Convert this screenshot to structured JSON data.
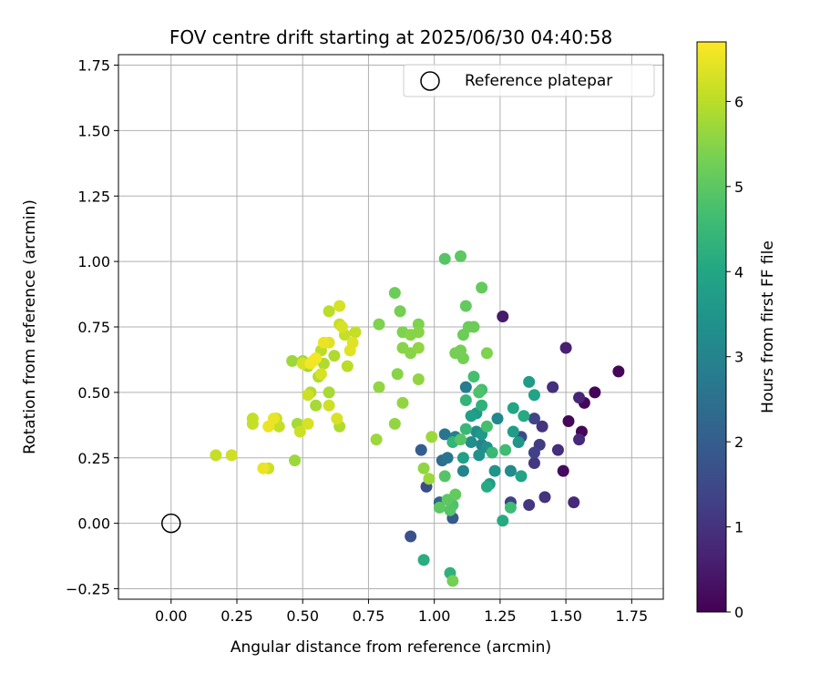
{
  "chart_data": {
    "type": "scatter",
    "title": "FOV centre drift starting at 2025/06/30 04:40:58",
    "xlabel": "Angular distance from reference (arcmin)",
    "ylabel": "Rotation from reference (arcmin)",
    "xlim": [
      -0.2,
      1.87
    ],
    "ylim": [
      -0.29,
      1.79
    ],
    "grid": true,
    "x_ticks": [
      "0.00",
      "0.25",
      "0.50",
      "0.75",
      "1.00",
      "1.25",
      "1.50",
      "1.75"
    ],
    "y_ticks": [
      "−0.25",
      "0.00",
      "0.25",
      "0.50",
      "0.75",
      "1.00",
      "1.25",
      "1.50",
      "1.75"
    ],
    "legend": {
      "position": "top-right",
      "label": "Reference platepar"
    },
    "reference_point": {
      "x": 0.0,
      "y": 0.0
    },
    "colorbar": {
      "label": "Hours from first FF file",
      "range": [
        0,
        6.7
      ],
      "ticks": [
        "0",
        "1",
        "2",
        "3",
        "4",
        "5",
        "6"
      ],
      "colormap": "viridis"
    },
    "points": [
      {
        "x": 1.7,
        "y": 0.58,
        "h": 0.1
      },
      {
        "x": 1.61,
        "y": 0.5,
        "h": 0.1
      },
      {
        "x": 1.57,
        "y": 0.46,
        "h": 0.1
      },
      {
        "x": 1.51,
        "y": 0.39,
        "h": 0.1
      },
      {
        "x": 1.56,
        "y": 0.35,
        "h": 0.1
      },
      {
        "x": 1.49,
        "y": 0.2,
        "h": 0.2
      },
      {
        "x": 1.26,
        "y": 0.79,
        "h": 0.5
      },
      {
        "x": 1.5,
        "y": 0.67,
        "h": 0.6
      },
      {
        "x": 1.55,
        "y": 0.48,
        "h": 0.7
      },
      {
        "x": 1.55,
        "y": 0.32,
        "h": 0.8
      },
      {
        "x": 1.53,
        "y": 0.08,
        "h": 0.8
      },
      {
        "x": 1.45,
        "y": 0.52,
        "h": 0.9
      },
      {
        "x": 1.47,
        "y": 0.28,
        "h": 0.9
      },
      {
        "x": 1.42,
        "y": 0.1,
        "h": 1.0
      },
      {
        "x": 1.41,
        "y": 0.37,
        "h": 1.0
      },
      {
        "x": 1.38,
        "y": 0.23,
        "h": 1.1
      },
      {
        "x": 1.36,
        "y": 0.07,
        "h": 1.1
      },
      {
        "x": 1.4,
        "y": 0.3,
        "h": 1.2
      },
      {
        "x": 1.38,
        "y": 0.27,
        "h": 1.3
      },
      {
        "x": 1.29,
        "y": 0.08,
        "h": 1.3
      },
      {
        "x": 1.38,
        "y": 0.4,
        "h": 1.4
      },
      {
        "x": 1.33,
        "y": 0.33,
        "h": 1.5
      },
      {
        "x": 0.97,
        "y": 0.14,
        "h": 1.6
      },
      {
        "x": 0.91,
        "y": -0.05,
        "h": 1.7
      },
      {
        "x": 1.07,
        "y": 0.02,
        "h": 1.9
      },
      {
        "x": 0.95,
        "y": 0.28,
        "h": 2.0
      },
      {
        "x": 1.02,
        "y": 0.08,
        "h": 2.2
      },
      {
        "x": 1.03,
        "y": 0.24,
        "h": 2.4
      },
      {
        "x": 1.05,
        "y": 0.25,
        "h": 2.6
      },
      {
        "x": 1.04,
        "y": 0.34,
        "h": 2.6
      },
      {
        "x": 1.12,
        "y": 0.52,
        "h": 2.8
      },
      {
        "x": 1.08,
        "y": 0.33,
        "h": 2.9
      },
      {
        "x": 1.11,
        "y": 0.2,
        "h": 3.0
      },
      {
        "x": 1.18,
        "y": 0.3,
        "h": 3.0
      },
      {
        "x": 1.24,
        "y": 0.4,
        "h": 3.1
      },
      {
        "x": 1.29,
        "y": 0.2,
        "h": 3.2
      },
      {
        "x": 1.14,
        "y": 0.31,
        "h": 3.3
      },
      {
        "x": 1.16,
        "y": 0.35,
        "h": 3.3
      },
      {
        "x": 1.2,
        "y": 0.29,
        "h": 3.4
      },
      {
        "x": 1.17,
        "y": 0.26,
        "h": 3.4
      },
      {
        "x": 1.32,
        "y": 0.31,
        "h": 3.5
      },
      {
        "x": 1.23,
        "y": 0.2,
        "h": 3.5
      },
      {
        "x": 1.16,
        "y": 0.42,
        "h": 3.6
      },
      {
        "x": 1.18,
        "y": 0.34,
        "h": 3.6
      },
      {
        "x": 1.36,
        "y": 0.54,
        "h": 3.7
      },
      {
        "x": 1.3,
        "y": 0.35,
        "h": 3.7
      },
      {
        "x": 1.21,
        "y": 0.15,
        "h": 3.7
      },
      {
        "x": 1.11,
        "y": 0.25,
        "h": 3.8
      },
      {
        "x": 1.14,
        "y": 0.41,
        "h": 3.8
      },
      {
        "x": 1.33,
        "y": 0.18,
        "h": 3.9
      },
      {
        "x": 1.38,
        "y": 0.49,
        "h": 3.9
      },
      {
        "x": 1.3,
        "y": 0.44,
        "h": 4.0
      },
      {
        "x": 1.34,
        "y": 0.41,
        "h": 4.1
      },
      {
        "x": 1.26,
        "y": 0.01,
        "h": 4.1
      },
      {
        "x": 1.2,
        "y": 0.14,
        "h": 4.1
      },
      {
        "x": 0.96,
        "y": -0.14,
        "h": 4.2
      },
      {
        "x": 1.06,
        "y": -0.19,
        "h": 4.3
      },
      {
        "x": 1.18,
        "y": 0.45,
        "h": 4.3
      },
      {
        "x": 1.12,
        "y": 0.47,
        "h": 4.4
      },
      {
        "x": 1.07,
        "y": 0.31,
        "h": 4.4
      },
      {
        "x": 1.12,
        "y": 0.36,
        "h": 4.5
      },
      {
        "x": 1.22,
        "y": 0.27,
        "h": 4.5
      },
      {
        "x": 1.27,
        "y": 0.28,
        "h": 4.6
      },
      {
        "x": 1.29,
        "y": 0.06,
        "h": 4.6
      },
      {
        "x": 1.2,
        "y": 0.37,
        "h": 4.7
      },
      {
        "x": 1.18,
        "y": 0.51,
        "h": 4.7
      },
      {
        "x": 1.15,
        "y": 0.56,
        "h": 4.7
      },
      {
        "x": 1.17,
        "y": 0.5,
        "h": 4.8
      },
      {
        "x": 1.07,
        "y": 0.07,
        "h": 4.8
      },
      {
        "x": 1.1,
        "y": 0.32,
        "h": 4.9
      },
      {
        "x": 1.06,
        "y": 0.05,
        "h": 4.9
      },
      {
        "x": 1.04,
        "y": 0.18,
        "h": 4.9
      },
      {
        "x": 1.02,
        "y": 0.06,
        "h": 5.0
      },
      {
        "x": 1.05,
        "y": 0.09,
        "h": 5.0
      },
      {
        "x": 1.08,
        "y": 0.11,
        "h": 5.1
      },
      {
        "x": 1.04,
        "y": 1.01,
        "h": 4.9
      },
      {
        "x": 1.1,
        "y": 1.02,
        "h": 5.0
      },
      {
        "x": 1.18,
        "y": 0.9,
        "h": 5.1
      },
      {
        "x": 1.12,
        "y": 0.83,
        "h": 5.1
      },
      {
        "x": 1.13,
        "y": 0.75,
        "h": 5.2
      },
      {
        "x": 1.11,
        "y": 0.72,
        "h": 5.2
      },
      {
        "x": 1.15,
        "y": 0.75,
        "h": 5.2
      },
      {
        "x": 1.08,
        "y": 0.65,
        "h": 5.3
      },
      {
        "x": 1.1,
        "y": 0.66,
        "h": 5.3
      },
      {
        "x": 1.11,
        "y": 0.63,
        "h": 5.3
      },
      {
        "x": 1.2,
        "y": 0.65,
        "h": 5.4
      },
      {
        "x": 1.07,
        "y": -0.22,
        "h": 5.3
      },
      {
        "x": 0.85,
        "y": 0.88,
        "h": 5.2
      },
      {
        "x": 0.87,
        "y": 0.81,
        "h": 5.3
      },
      {
        "x": 0.94,
        "y": 0.76,
        "h": 5.4
      },
      {
        "x": 0.79,
        "y": 0.76,
        "h": 5.4
      },
      {
        "x": 0.88,
        "y": 0.73,
        "h": 5.4
      },
      {
        "x": 0.91,
        "y": 0.72,
        "h": 5.5
      },
      {
        "x": 0.94,
        "y": 0.73,
        "h": 5.5
      },
      {
        "x": 0.88,
        "y": 0.67,
        "h": 5.5
      },
      {
        "x": 0.91,
        "y": 0.65,
        "h": 5.5
      },
      {
        "x": 0.94,
        "y": 0.67,
        "h": 5.6
      },
      {
        "x": 0.86,
        "y": 0.57,
        "h": 5.5
      },
      {
        "x": 0.94,
        "y": 0.55,
        "h": 5.6
      },
      {
        "x": 0.79,
        "y": 0.52,
        "h": 5.6
      },
      {
        "x": 0.88,
        "y": 0.46,
        "h": 5.6
      },
      {
        "x": 0.85,
        "y": 0.38,
        "h": 5.6
      },
      {
        "x": 0.78,
        "y": 0.32,
        "h": 5.7
      },
      {
        "x": 0.96,
        "y": 0.21,
        "h": 5.6
      },
      {
        "x": 0.98,
        "y": 0.17,
        "h": 5.7
      },
      {
        "x": 0.99,
        "y": 0.33,
        "h": 5.7
      },
      {
        "x": 0.47,
        "y": 0.24,
        "h": 5.7
      },
      {
        "x": 0.46,
        "y": 0.62,
        "h": 5.7
      },
      {
        "x": 0.5,
        "y": 0.62,
        "h": 5.8
      },
      {
        "x": 0.52,
        "y": 0.6,
        "h": 5.8
      },
      {
        "x": 0.55,
        "y": 0.45,
        "h": 5.8
      },
      {
        "x": 0.48,
        "y": 0.38,
        "h": 5.8
      },
      {
        "x": 0.6,
        "y": 0.5,
        "h": 5.8
      },
      {
        "x": 0.53,
        "y": 0.5,
        "h": 5.9
      },
      {
        "x": 0.56,
        "y": 0.56,
        "h": 5.9
      },
      {
        "x": 0.58,
        "y": 0.61,
        "h": 5.9
      },
      {
        "x": 0.64,
        "y": 0.37,
        "h": 5.9
      },
      {
        "x": 0.62,
        "y": 0.64,
        "h": 5.9
      },
      {
        "x": 0.67,
        "y": 0.6,
        "h": 6.0
      },
      {
        "x": 0.57,
        "y": 0.66,
        "h": 6.0
      },
      {
        "x": 0.6,
        "y": 0.81,
        "h": 6.0
      },
      {
        "x": 0.64,
        "y": 0.76,
        "h": 6.1
      },
      {
        "x": 0.66,
        "y": 0.72,
        "h": 6.1
      },
      {
        "x": 0.7,
        "y": 0.73,
        "h": 6.1
      },
      {
        "x": 0.41,
        "y": 0.37,
        "h": 6.1
      },
      {
        "x": 0.4,
        "y": 0.4,
        "h": 6.1
      },
      {
        "x": 0.31,
        "y": 0.38,
        "h": 6.1
      },
      {
        "x": 0.31,
        "y": 0.4,
        "h": 6.1
      },
      {
        "x": 0.17,
        "y": 0.26,
        "h": 6.1
      },
      {
        "x": 0.23,
        "y": 0.26,
        "h": 6.2
      },
      {
        "x": 0.37,
        "y": 0.21,
        "h": 6.2
      },
      {
        "x": 0.49,
        "y": 0.35,
        "h": 6.2
      },
      {
        "x": 0.52,
        "y": 0.49,
        "h": 6.2
      },
      {
        "x": 0.6,
        "y": 0.45,
        "h": 6.2
      },
      {
        "x": 0.52,
        "y": 0.38,
        "h": 6.3
      },
      {
        "x": 0.63,
        "y": 0.4,
        "h": 6.3
      },
      {
        "x": 0.57,
        "y": 0.57,
        "h": 6.3
      },
      {
        "x": 0.5,
        "y": 0.61,
        "h": 6.3
      },
      {
        "x": 0.64,
        "y": 0.83,
        "h": 6.3
      },
      {
        "x": 0.65,
        "y": 0.75,
        "h": 6.3
      },
      {
        "x": 0.68,
        "y": 0.66,
        "h": 6.4
      },
      {
        "x": 0.69,
        "y": 0.69,
        "h": 6.4
      },
      {
        "x": 0.6,
        "y": 0.69,
        "h": 6.4
      },
      {
        "x": 0.58,
        "y": 0.69,
        "h": 6.5
      },
      {
        "x": 0.39,
        "y": 0.4,
        "h": 6.5
      },
      {
        "x": 0.37,
        "y": 0.37,
        "h": 6.5
      },
      {
        "x": 0.35,
        "y": 0.21,
        "h": 6.5
      },
      {
        "x": 0.54,
        "y": 0.62,
        "h": 6.6
      },
      {
        "x": 0.53,
        "y": 0.61,
        "h": 6.6
      },
      {
        "x": 0.55,
        "y": 0.63,
        "h": 6.6
      }
    ]
  }
}
